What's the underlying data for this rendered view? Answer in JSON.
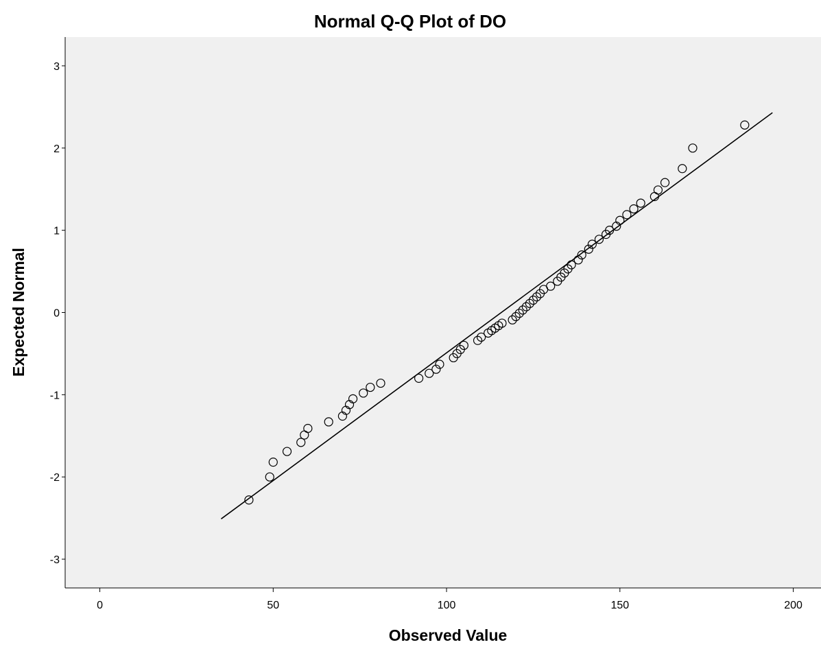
{
  "chart_data": {
    "type": "scatter",
    "title": "Normal Q-Q Plot of DO",
    "xlabel": "Observed Value",
    "ylabel": "Expected Normal",
    "xlim": [
      -10,
      208
    ],
    "ylim": [
      -3.35,
      3.35
    ],
    "xticks": [
      "0",
      "50",
      "100",
      "150",
      "200"
    ],
    "xtick_values": [
      0,
      50,
      100,
      150,
      200
    ],
    "yticks": [
      "3",
      "2",
      "1",
      "0",
      "-1",
      "-2",
      "-3"
    ],
    "ytick_values": [
      3,
      2,
      1,
      0,
      -1,
      -2,
      -3
    ],
    "plot_background": "#f0f0f0",
    "grid": false,
    "reference_line": {
      "x": [
        35,
        194
      ],
      "y": [
        -2.51,
        2.43
      ]
    },
    "points": {
      "x": [
        43,
        49,
        50,
        54,
        58,
        59,
        60,
        66,
        70,
        71,
        72,
        73,
        76,
        78,
        81,
        92,
        95,
        97,
        98,
        102,
        103,
        104,
        105,
        109,
        110,
        112,
        113,
        114,
        115,
        116,
        119,
        120,
        121,
        122,
        123,
        124,
        125,
        126,
        127,
        128,
        130,
        132,
        133,
        134,
        135,
        136,
        138,
        139,
        141,
        142,
        144,
        146,
        147,
        149,
        150,
        152,
        154,
        156,
        160,
        161,
        163,
        168,
        171,
        186
      ],
      "y": [
        -2.28,
        -2.0,
        -1.82,
        -1.69,
        -1.58,
        -1.49,
        -1.41,
        -1.33,
        -1.26,
        -1.19,
        -1.12,
        -1.05,
        -0.98,
        -0.91,
        -0.86,
        -0.8,
        -0.74,
        -0.69,
        -0.63,
        -0.55,
        -0.5,
        -0.45,
        -0.4,
        -0.34,
        -0.3,
        -0.25,
        -0.22,
        -0.19,
        -0.16,
        -0.13,
        -0.09,
        -0.05,
        -0.01,
        0.03,
        0.07,
        0.11,
        0.15,
        0.19,
        0.23,
        0.28,
        0.32,
        0.38,
        0.43,
        0.48,
        0.53,
        0.58,
        0.64,
        0.7,
        0.77,
        0.83,
        0.89,
        0.95,
        1.0,
        1.05,
        1.12,
        1.19,
        1.26,
        1.33,
        1.41,
        1.49,
        1.58,
        1.75,
        2.0,
        2.28
      ]
    }
  }
}
